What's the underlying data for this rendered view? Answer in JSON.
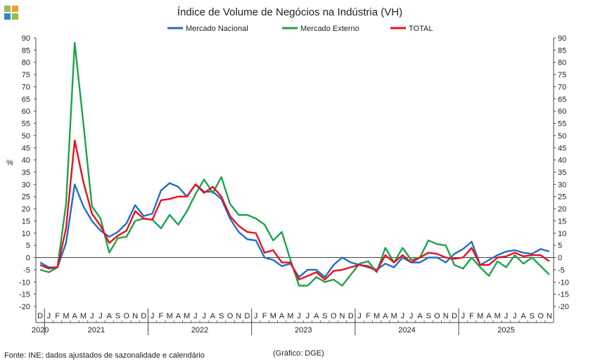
{
  "logo": {
    "colors": [
      "#9bbb59",
      "#f0a030",
      "#2e86c1",
      "#8fc33d"
    ]
  },
  "footer": {
    "source": "Fonte: INE; dados ajustados de sazonalidade e calendário",
    "credit": "(Gráfico: DGE)"
  },
  "chart_data": {
    "type": "line",
    "title": "Índice de Volume de Negócios na Indústria (VH)",
    "ylabel": "%",
    "ylim": [
      -20,
      90
    ],
    "ytick_step": 5,
    "grid": false,
    "legend_position": "top-center",
    "x": [
      "2020-12",
      "2021-01",
      "2021-02",
      "2021-03",
      "2021-04",
      "2021-05",
      "2021-06",
      "2021-07",
      "2021-08",
      "2021-09",
      "2021-10",
      "2021-11",
      "2021-12",
      "2022-01",
      "2022-02",
      "2022-03",
      "2022-04",
      "2022-05",
      "2022-06",
      "2022-07",
      "2022-08",
      "2022-09",
      "2022-10",
      "2022-11",
      "2022-12",
      "2023-01",
      "2023-02",
      "2023-03",
      "2023-04",
      "2023-05",
      "2023-06",
      "2023-07",
      "2023-08",
      "2023-09",
      "2023-10",
      "2023-11",
      "2023-12",
      "2024-01",
      "2024-02",
      "2024-03",
      "2024-04",
      "2024-05",
      "2024-06",
      "2024-07",
      "2024-08",
      "2024-09",
      "2024-10",
      "2024-11",
      "2024-12",
      "2025-01",
      "2025-02",
      "2025-03",
      "2025-04",
      "2025-05",
      "2025-06",
      "2025-07",
      "2025-08",
      "2025-09",
      "2025-10",
      "2025-11"
    ],
    "month_labels": [
      "D",
      "J",
      "F",
      "M",
      "A",
      "M",
      "J",
      "J",
      "A",
      "S",
      "O",
      "N",
      "D",
      "J",
      "F",
      "M",
      "A",
      "M",
      "J",
      "J",
      "A",
      "S",
      "O",
      "N",
      "D",
      "J",
      "F",
      "M",
      "A",
      "M",
      "J",
      "J",
      "A",
      "S",
      "O",
      "N",
      "D",
      "J",
      "F",
      "M",
      "A",
      "M",
      "J",
      "J",
      "A",
      "S",
      "O",
      "N",
      "D",
      "J",
      "F",
      "M",
      "A",
      "M",
      "J",
      "J",
      "A",
      "S",
      "O",
      "N"
    ],
    "years": [
      {
        "label": "2020",
        "start": 0,
        "end": 0
      },
      {
        "label": "2021",
        "start": 1,
        "end": 12
      },
      {
        "label": "2022",
        "start": 13,
        "end": 24
      },
      {
        "label": "2023",
        "start": 25,
        "end": 36
      },
      {
        "label": "2024",
        "start": 37,
        "end": 48
      },
      {
        "label": "2025",
        "start": 49,
        "end": 59
      }
    ],
    "series": [
      {
        "name": "Mercado Nacional",
        "color": "#1f6fbf",
        "values": [
          -2,
          -4,
          -4,
          6,
          30,
          21,
          15,
          11,
          8.5,
          10.5,
          14,
          21.5,
          17,
          18,
          27.5,
          30.5,
          29,
          25,
          30,
          27,
          27,
          24,
          16,
          10.5,
          7.5,
          7,
          0,
          -1,
          -3.5,
          -2.5,
          -8,
          -5,
          -5,
          -8,
          -3,
          0,
          -2,
          -3,
          -4,
          -5,
          -2.5,
          -4,
          0,
          -2,
          -2,
          0,
          0,
          -2,
          1.5,
          3.5,
          6.5,
          -3,
          -1,
          1,
          2.5,
          3,
          2,
          1.5,
          3.5,
          2.5
        ]
      },
      {
        "name": "Mercado Externo",
        "color": "#1fa24a",
        "values": [
          -5,
          -6,
          -4,
          22,
          88,
          55,
          21,
          16,
          2,
          8,
          8.5,
          15,
          16,
          15.5,
          12,
          17.5,
          13.5,
          19,
          26,
          32,
          26.5,
          33,
          22,
          17.5,
          17.5,
          16,
          13.5,
          7,
          10.5,
          -1,
          -11.5,
          -11.5,
          -8,
          -10,
          -9,
          -11.5,
          -7,
          -2.5,
          -1.5,
          -6,
          4,
          -2,
          4,
          -1,
          0,
          7,
          5.5,
          5,
          -3,
          -4.5,
          0,
          -4,
          -7.5,
          -1.5,
          -4,
          1,
          -2.5,
          0,
          -3.5,
          -7
        ]
      },
      {
        "name": "TOTAL",
        "color": "#e8101e",
        "values": [
          -3,
          -4.5,
          -4,
          12,
          48,
          31,
          18,
          13,
          6,
          9,
          11,
          19,
          16,
          15.5,
          23.5,
          24,
          25,
          25,
          30,
          26.5,
          29,
          25,
          17,
          13,
          10.5,
          10,
          2,
          3,
          -2,
          -2,
          -9,
          -7.5,
          -6,
          -9,
          -5.5,
          -5,
          -4,
          -3,
          -3.5,
          -5.5,
          1,
          -2,
          1,
          -2,
          0,
          2,
          1.5,
          0,
          -0.5,
          0,
          4,
          -3,
          -3,
          0,
          0.5,
          2,
          0.5,
          1,
          1,
          -1.5
        ]
      }
    ]
  }
}
